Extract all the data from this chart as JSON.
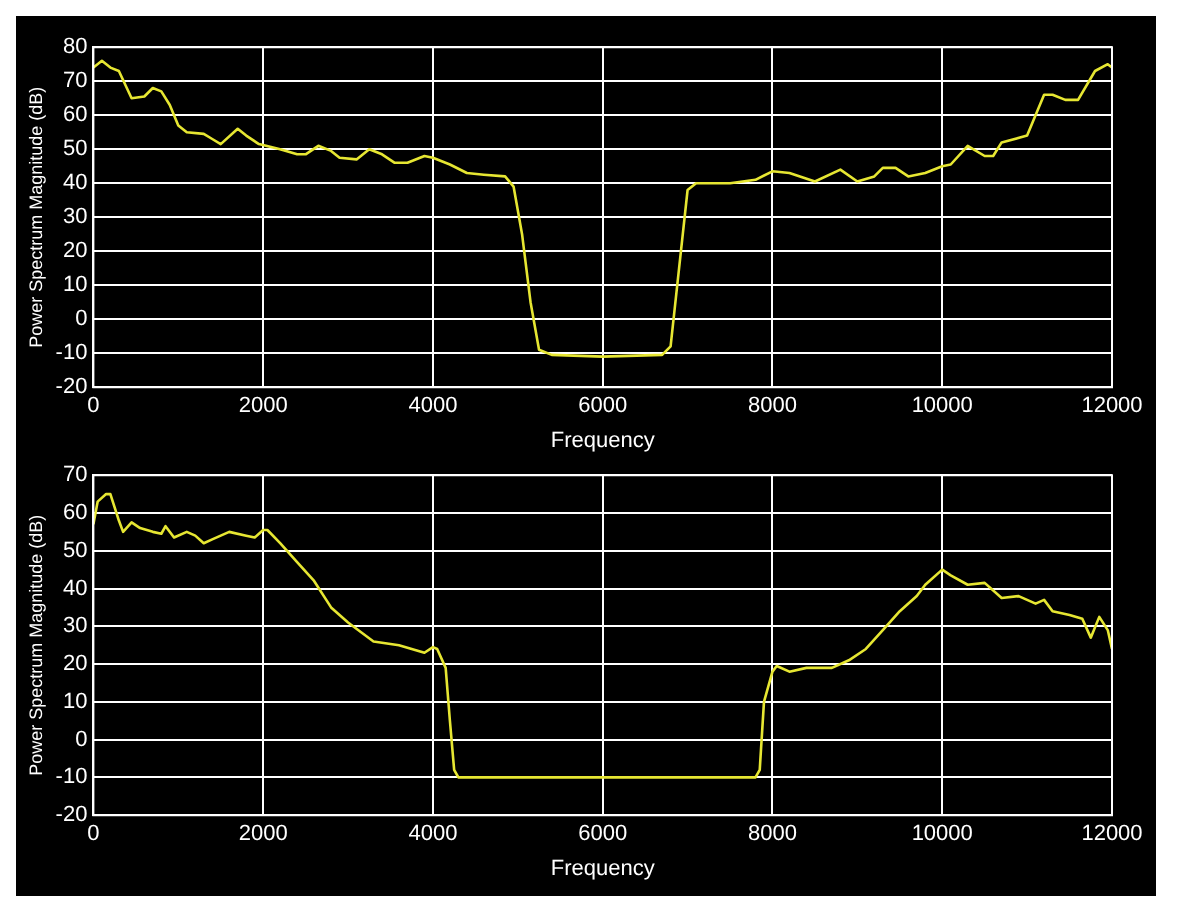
{
  "chart_data": [
    {
      "type": "line",
      "xlabel": "Frequency",
      "ylabel": "Power Spectrum Magnitude (dB)",
      "xlim": [
        0,
        12000
      ],
      "ylim": [
        -20,
        80
      ],
      "xticks": [
        0,
        2000,
        4000,
        6000,
        8000,
        10000,
        12000
      ],
      "yticks": [
        -20,
        -10,
        0,
        10,
        20,
        30,
        40,
        50,
        60,
        70,
        80
      ],
      "grid": true,
      "marker": "none",
      "line_style": "solid",
      "x": [
        0,
        100,
        200,
        300,
        450,
        600,
        700,
        800,
        900,
        1000,
        1100,
        1300,
        1400,
        1500,
        1700,
        1800,
        1950,
        2200,
        2400,
        2500,
        2650,
        2800,
        2900,
        3100,
        3250,
        3400,
        3550,
        3700,
        3900,
        4000,
        4200,
        4400,
        4600,
        4850,
        4950,
        5050,
        5150,
        5250,
        5400,
        6000,
        6700,
        6800,
        6900,
        7000,
        7100,
        7500,
        7800,
        8000,
        8200,
        8500,
        8800,
        9000,
        9200,
        9300,
        9450,
        9600,
        9800,
        10000,
        10100,
        10300,
        10500,
        10600,
        10700,
        11000,
        11200,
        11300,
        11450,
        11600,
        11800,
        11950,
        12000
      ],
      "series": [
        {
          "color": "#e6e632",
          "values": [
            74,
            76,
            74,
            73,
            65,
            65.5,
            68,
            67,
            63,
            57,
            55,
            54.5,
            53,
            51.5,
            56,
            54,
            51.5,
            50,
            48.5,
            48.5,
            51,
            49.5,
            47.5,
            47,
            50,
            48.5,
            46,
            46,
            48,
            47.5,
            45.5,
            43,
            42.5,
            42,
            39,
            25,
            5,
            -9,
            -10.5,
            -11,
            -10.5,
            -8,
            15,
            38,
            40,
            40,
            41,
            43.5,
            43,
            40.5,
            44,
            40.5,
            42,
            44.5,
            44.5,
            42,
            43,
            45,
            45.5,
            51,
            48,
            48,
            52,
            54,
            66,
            66,
            64.5,
            64.5,
            73,
            75,
            74
          ]
        }
      ]
    },
    {
      "type": "line",
      "xlabel": "Frequency",
      "ylabel": "Power Spectrum Magnitude (dB)",
      "xlim": [
        0,
        12000
      ],
      "ylim": [
        -20,
        70
      ],
      "xticks": [
        0,
        2000,
        4000,
        6000,
        8000,
        10000,
        12000
      ],
      "yticks": [
        -20,
        -10,
        0,
        10,
        20,
        30,
        40,
        50,
        60,
        70
      ],
      "grid": true,
      "marker": "none",
      "line_style": "solid",
      "x": [
        0,
        50,
        150,
        200,
        300,
        350,
        450,
        550,
        700,
        800,
        850,
        950,
        1100,
        1200,
        1300,
        1400,
        1600,
        1800,
        1900,
        2000,
        2050,
        2200,
        2400,
        2600,
        2800,
        3000,
        3300,
        3600,
        3900,
        4000,
        4050,
        4150,
        4200,
        4250,
        4300,
        6000,
        7800,
        7850,
        7900,
        8000,
        8050,
        8200,
        8400,
        8700,
        8900,
        9100,
        9300,
        9500,
        9700,
        9800,
        10000,
        10100,
        10300,
        10500,
        10700,
        10900,
        11100,
        11200,
        11300,
        11500,
        11650,
        11750,
        11850,
        11950,
        12000
      ],
      "series": [
        {
          "color": "#e6e632",
          "values": [
            57,
            63,
            65,
            65,
            58,
            55,
            57.5,
            56,
            55,
            54.5,
            56.5,
            53.5,
            55,
            54,
            52,
            53,
            55,
            54,
            53.5,
            55.5,
            55.5,
            52,
            47,
            42,
            35,
            31,
            26,
            25,
            23,
            24.5,
            24,
            19,
            5,
            -8,
            -10,
            -10,
            -10,
            -8,
            10,
            18,
            19.5,
            18,
            19,
            19,
            21,
            24,
            29,
            34,
            38,
            41,
            45,
            43.5,
            41,
            41.5,
            37.5,
            38,
            36,
            37,
            34,
            33,
            32,
            27,
            32.5,
            29,
            24
          ]
        }
      ]
    }
  ]
}
